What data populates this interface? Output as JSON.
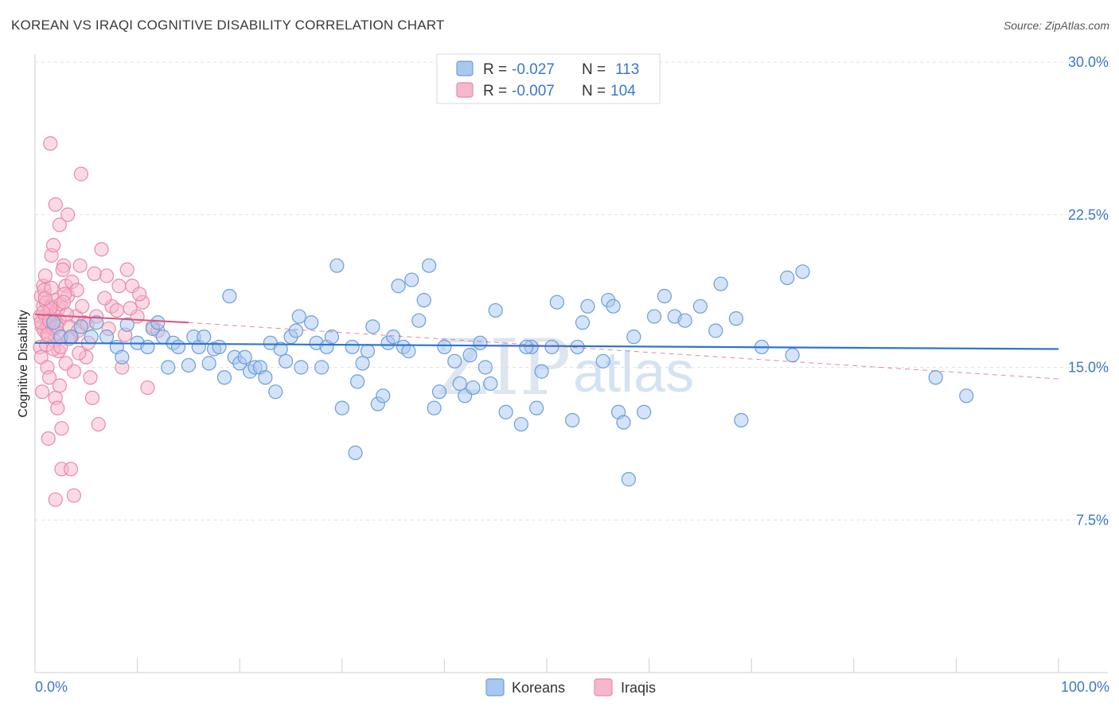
{
  "title": "KOREAN VS IRAQI COGNITIVE DISABILITY CORRELATION CHART",
  "source": "Source: ZipAtlas.com",
  "watermark": {
    "zip": "ZIP",
    "atlas": "atlas"
  },
  "colors": {
    "koreans_fill": "#a9c8f0",
    "koreans_stroke": "#6a9fd8",
    "koreans_line": "#2f74cf",
    "iraqis_fill": "#f7b6cb",
    "iraqis_stroke": "#e88aa8",
    "iraqis_line": "#e0507e",
    "tick_label": "#3b78c8",
    "grid": "#e3e3e3"
  },
  "legend": {
    "rows": [
      {
        "r_label": "R = ",
        "r_value": "-0.027",
        "n_label": "N = ",
        "n_value": "113"
      },
      {
        "r_label": "R = ",
        "r_value": "-0.007",
        "n_label": "N = ",
        "n_value": "104"
      }
    ]
  },
  "bottom_legend": [
    "Koreans",
    "Iraqis"
  ],
  "chart_data": {
    "type": "scatter",
    "title": "KOREAN VS IRAQI COGNITIVE DISABILITY CORRELATION CHART",
    "xlabel": "",
    "ylabel": "Cognitive Disability",
    "xlim": [
      0,
      100
    ],
    "ylim": [
      0,
      30
    ],
    "y_ticks": [
      "30.0%",
      "22.5%",
      "15.0%",
      "7.5%"
    ],
    "y_tick_values": [
      30,
      22.5,
      15,
      7.5
    ],
    "x_tick_labels": [
      "0.0%",
      "100.0%"
    ],
    "grid": true,
    "legend_position": "top-center",
    "series": [
      {
        "name": "Koreans",
        "r": -0.027,
        "n": 113,
        "trend": {
          "x": [
            0,
            100
          ],
          "y": [
            16.2,
            15.9
          ]
        },
        "points": [
          [
            1.8,
            17.2
          ],
          [
            2.5,
            16.5
          ],
          [
            3.5,
            16.5
          ],
          [
            4.5,
            17.0
          ],
          [
            5.5,
            16.5
          ],
          [
            6.0,
            17.2
          ],
          [
            7.0,
            16.5
          ],
          [
            8.0,
            16.0
          ],
          [
            9.0,
            17.1
          ],
          [
            8.5,
            15.5
          ],
          [
            10.0,
            16.2
          ],
          [
            11.0,
            16.0
          ],
          [
            11.5,
            16.9
          ],
          [
            12.0,
            17.2
          ],
          [
            12.5,
            16.5
          ],
          [
            13.0,
            15.0
          ],
          [
            13.5,
            16.2
          ],
          [
            14.0,
            16.0
          ],
          [
            15.0,
            15.1
          ],
          [
            15.5,
            16.5
          ],
          [
            16.0,
            16.0
          ],
          [
            17.0,
            15.2
          ],
          [
            17.5,
            15.9
          ],
          [
            16.5,
            16.5
          ],
          [
            18.0,
            16.0
          ],
          [
            18.5,
            14.5
          ],
          [
            19.0,
            18.5
          ],
          [
            19.5,
            15.5
          ],
          [
            20.0,
            15.2
          ],
          [
            20.5,
            15.5
          ],
          [
            21.0,
            14.8
          ],
          [
            21.5,
            15.0
          ],
          [
            22.0,
            15.0
          ],
          [
            22.5,
            14.5
          ],
          [
            23.0,
            16.2
          ],
          [
            23.5,
            13.8
          ],
          [
            24.0,
            15.9
          ],
          [
            24.5,
            15.3
          ],
          [
            25.0,
            16.5
          ],
          [
            25.5,
            16.8
          ],
          [
            26.0,
            15.0
          ],
          [
            27.0,
            17.2
          ],
          [
            27.5,
            16.2
          ],
          [
            28.0,
            15.0
          ],
          [
            28.5,
            16.0
          ],
          [
            29.0,
            16.5
          ],
          [
            29.5,
            20.0
          ],
          [
            30.0,
            13.0
          ],
          [
            31.0,
            16.0
          ],
          [
            31.5,
            14.3
          ],
          [
            32.0,
            15.2
          ],
          [
            32.5,
            15.8
          ],
          [
            33.0,
            17.0
          ],
          [
            33.5,
            13.2
          ],
          [
            34.0,
            13.6
          ],
          [
            34.5,
            16.2
          ],
          [
            35.5,
            19.0
          ],
          [
            36.0,
            16.0
          ],
          [
            36.5,
            15.8
          ],
          [
            37.5,
            17.3
          ],
          [
            38.0,
            18.3
          ],
          [
            38.5,
            20.0
          ],
          [
            39.0,
            13.0
          ],
          [
            39.5,
            13.8
          ],
          [
            40.0,
            16.0
          ],
          [
            41.0,
            15.3
          ],
          [
            41.5,
            14.2
          ],
          [
            42.0,
            13.6
          ],
          [
            42.5,
            15.6
          ],
          [
            43.5,
            16.2
          ],
          [
            44.0,
            15.0
          ],
          [
            44.5,
            14.2
          ],
          [
            46.0,
            12.8
          ],
          [
            47.5,
            12.2
          ],
          [
            48.5,
            16.0
          ],
          [
            48.0,
            16.0
          ],
          [
            49.0,
            13.0
          ],
          [
            49.5,
            14.8
          ],
          [
            50.5,
            16.0
          ],
          [
            51.0,
            18.2
          ],
          [
            52.5,
            12.4
          ],
          [
            53.0,
            16.0
          ],
          [
            53.5,
            17.2
          ],
          [
            54.0,
            18.0
          ],
          [
            55.5,
            15.3
          ],
          [
            56.0,
            18.3
          ],
          [
            56.5,
            18.0
          ],
          [
            57.0,
            12.8
          ],
          [
            58.0,
            9.5
          ],
          [
            58.5,
            16.5
          ],
          [
            59.5,
            12.8
          ],
          [
            60.5,
            17.5
          ],
          [
            61.5,
            18.5
          ],
          [
            62.5,
            17.5
          ],
          [
            63.5,
            17.3
          ],
          [
            65.0,
            18.0
          ],
          [
            66.5,
            16.8
          ],
          [
            67.0,
            19.1
          ],
          [
            68.5,
            17.4
          ],
          [
            69.0,
            12.4
          ],
          [
            71.0,
            16.0
          ],
          [
            73.5,
            19.4
          ],
          [
            74.0,
            15.6
          ],
          [
            75.0,
            19.7
          ],
          [
            88.0,
            14.5
          ],
          [
            91.0,
            13.6
          ],
          [
            57.5,
            12.3
          ],
          [
            42.8,
            14.0
          ],
          [
            36.8,
            19.3
          ],
          [
            31.3,
            10.8
          ],
          [
            25.8,
            17.5
          ],
          [
            35.0,
            16.5
          ],
          [
            45.0,
            17.8
          ]
        ]
      },
      {
        "name": "Iraqis",
        "r": -0.007,
        "n": 104,
        "trend": {
          "x": [
            0,
            15
          ],
          "y": [
            17.6,
            17.2
          ]
        },
        "points": [
          [
            0.5,
            17.5
          ],
          [
            0.6,
            18.5
          ],
          [
            0.7,
            17.0
          ],
          [
            0.8,
            18.0
          ],
          [
            0.9,
            16.8
          ],
          [
            1.0,
            17.5
          ],
          [
            1.1,
            18.2
          ],
          [
            1.2,
            17.0
          ],
          [
            1.3,
            16.5
          ],
          [
            1.4,
            17.8
          ],
          [
            1.5,
            17.2
          ],
          [
            1.6,
            18.0
          ],
          [
            1.7,
            17.4
          ],
          [
            1.8,
            16.9
          ],
          [
            1.9,
            17.6
          ],
          [
            2.0,
            18.3
          ],
          [
            2.1,
            17.1
          ],
          [
            2.2,
            16.7
          ],
          [
            2.3,
            17.9
          ],
          [
            2.4,
            17.3
          ],
          [
            2.5,
            18.1
          ],
          [
            0.5,
            16.0
          ],
          [
            0.6,
            15.5
          ],
          [
            0.8,
            19.0
          ],
          [
            1.0,
            19.5
          ],
          [
            1.2,
            15.0
          ],
          [
            1.4,
            14.5
          ],
          [
            1.6,
            20.5
          ],
          [
            1.8,
            21.0
          ],
          [
            2.0,
            13.5
          ],
          [
            2.2,
            13.0
          ],
          [
            2.4,
            22.0
          ],
          [
            2.6,
            12.0
          ],
          [
            2.8,
            20.0
          ],
          [
            3.0,
            19.0
          ],
          [
            3.2,
            18.5
          ],
          [
            3.4,
            17.0
          ],
          [
            3.6,
            16.5
          ],
          [
            3.8,
            14.8
          ],
          [
            4.0,
            17.5
          ],
          [
            4.2,
            16.8
          ],
          [
            4.4,
            20.0
          ],
          [
            4.6,
            18.0
          ],
          [
            4.8,
            17.2
          ],
          [
            5.0,
            15.5
          ],
          [
            5.2,
            16.2
          ],
          [
            5.4,
            14.5
          ],
          [
            5.6,
            13.5
          ],
          [
            6.0,
            17.5
          ],
          [
            6.5,
            20.8
          ],
          [
            7.0,
            19.5
          ],
          [
            7.5,
            18.0
          ],
          [
            8.0,
            17.8
          ],
          [
            8.5,
            15.0
          ],
          [
            9.0,
            19.8
          ],
          [
            9.5,
            19.0
          ],
          [
            10.0,
            17.5
          ],
          [
            10.5,
            18.2
          ],
          [
            11.0,
            14.0
          ],
          [
            11.5,
            17.0
          ],
          [
            12.0,
            16.8
          ],
          [
            1.5,
            26.0
          ],
          [
            2.0,
            23.0
          ],
          [
            4.5,
            24.5
          ],
          [
            3.2,
            22.5
          ],
          [
            2.6,
            10.0
          ],
          [
            2.0,
            8.5
          ],
          [
            3.8,
            8.7
          ],
          [
            3.5,
            10.0
          ],
          [
            1.3,
            11.5
          ],
          [
            6.2,
            12.2
          ],
          [
            0.7,
            13.8
          ],
          [
            1.9,
            16.3
          ],
          [
            2.7,
            19.8
          ],
          [
            3.1,
            17.6
          ],
          [
            0.9,
            18.8
          ],
          [
            1.1,
            16.1
          ],
          [
            1.5,
            17.9
          ],
          [
            2.3,
            15.8
          ],
          [
            2.9,
            18.6
          ],
          [
            3.3,
            16.4
          ],
          [
            0.6,
            17.2
          ],
          [
            0.8,
            17.7
          ],
          [
            1.0,
            18.4
          ],
          [
            1.2,
            16.6
          ],
          [
            1.4,
            17.3
          ],
          [
            1.6,
            18.9
          ],
          [
            1.8,
            15.9
          ],
          [
            2.1,
            17.0
          ],
          [
            2.5,
            16.0
          ],
          [
            2.8,
            18.2
          ],
          [
            3.0,
            15.2
          ],
          [
            3.6,
            19.2
          ],
          [
            4.1,
            18.8
          ],
          [
            4.3,
            15.7
          ],
          [
            5.1,
            17.1
          ],
          [
            5.8,
            19.6
          ],
          [
            6.8,
            18.4
          ],
          [
            7.2,
            16.9
          ],
          [
            8.2,
            19.0
          ],
          [
            8.8,
            16.6
          ],
          [
            9.3,
            17.9
          ],
          [
            10.2,
            18.6
          ],
          [
            2.4,
            14.1
          ]
        ]
      }
    ]
  }
}
